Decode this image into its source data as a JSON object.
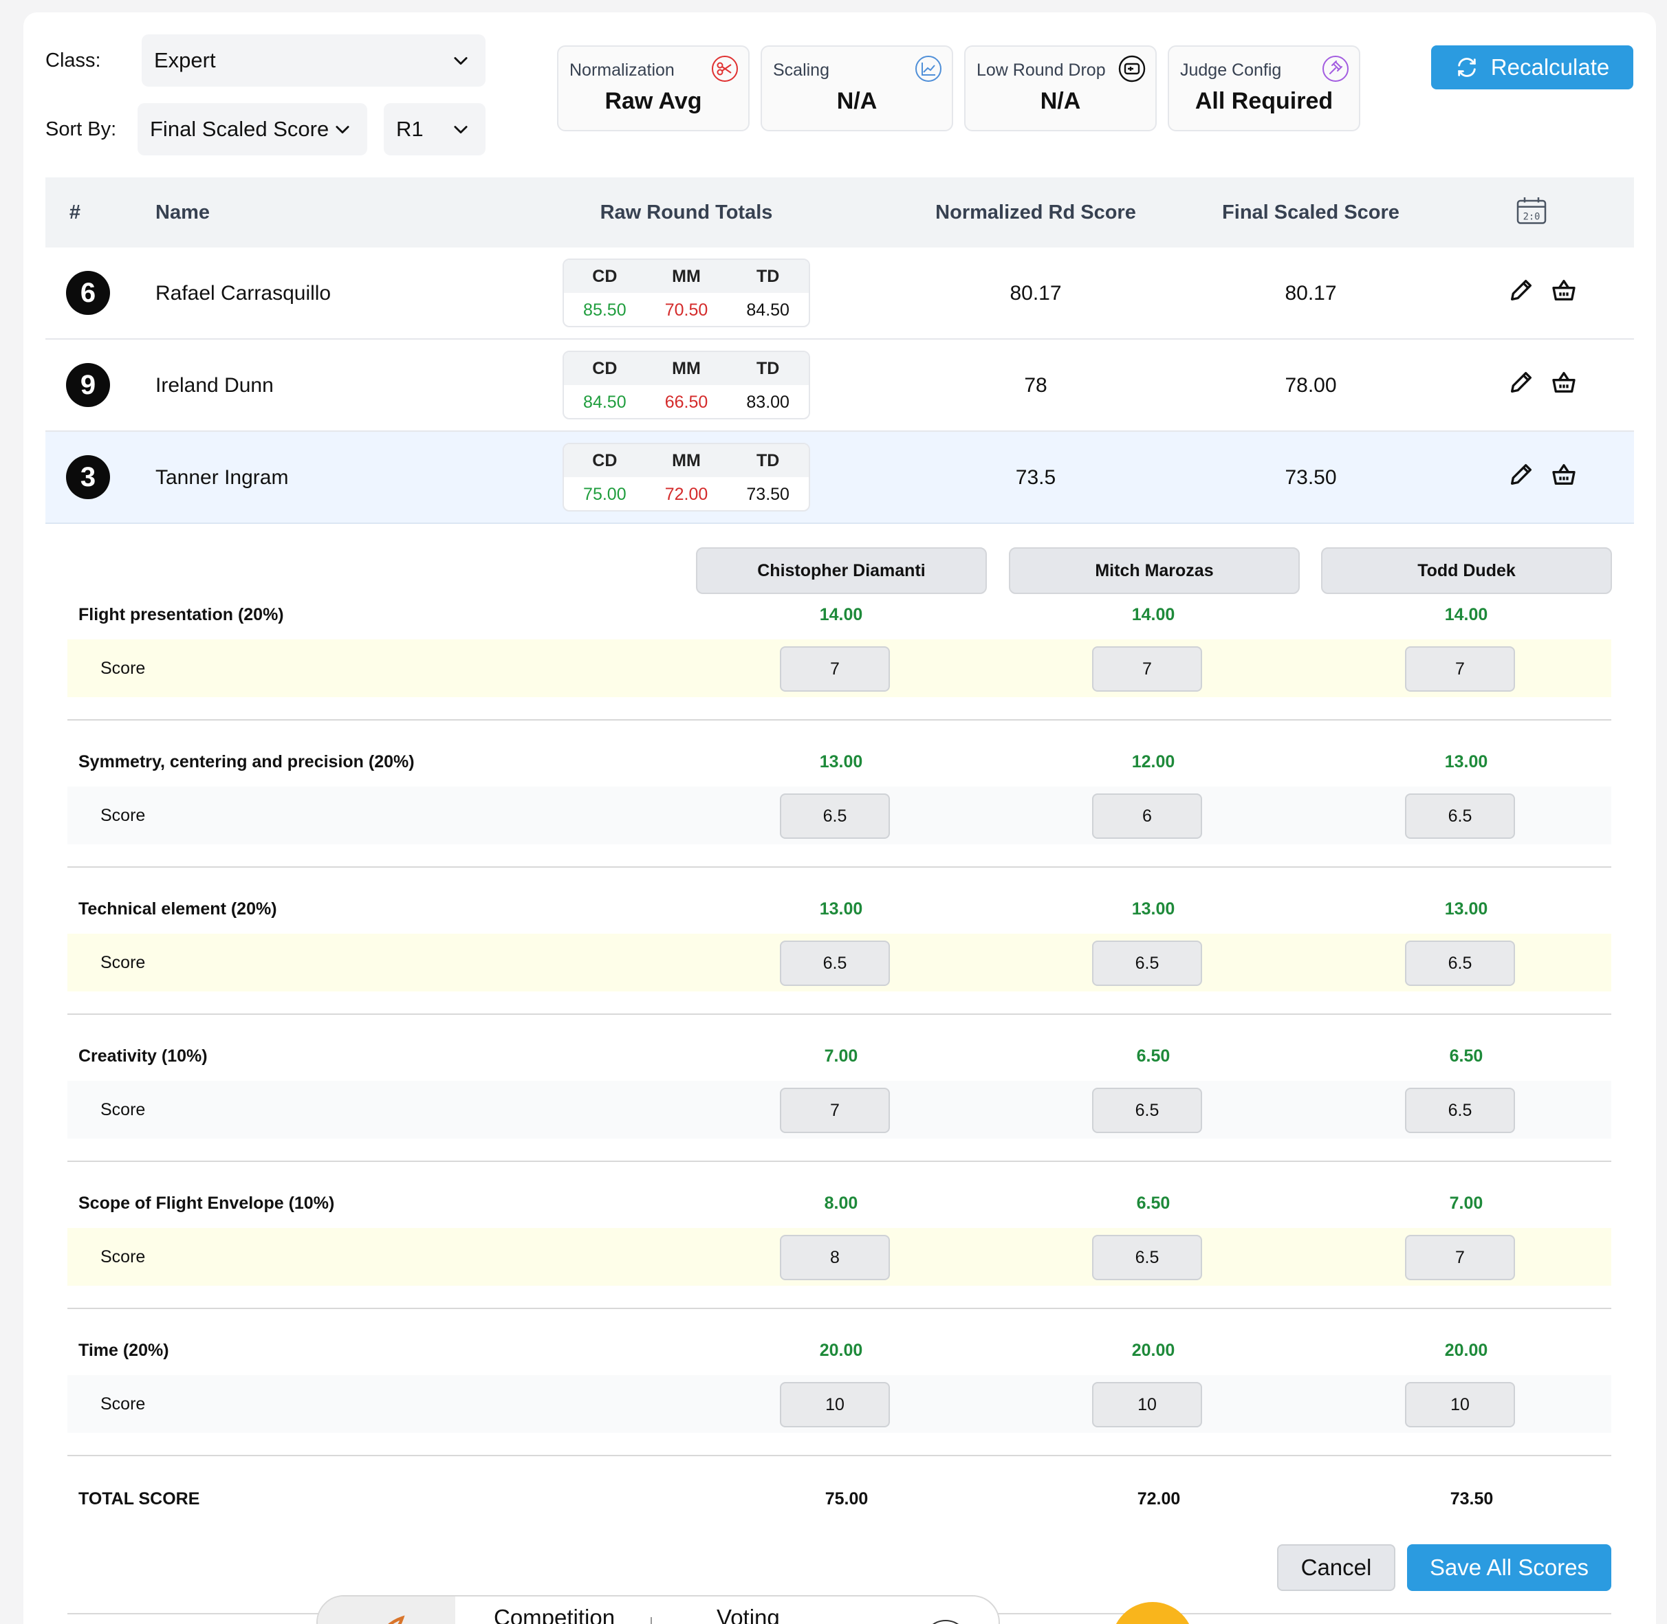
{
  "filters": {
    "class_label": "Class:",
    "class_value": "Expert",
    "sort_label": "Sort By:",
    "sort_value": "Final Scaled Score",
    "round_value": "R1"
  },
  "stats": [
    {
      "title": "Normalization",
      "value": "Raw Avg",
      "icon": "scissors-icon",
      "color": "#e03131"
    },
    {
      "title": "Scaling",
      "value": "N/A",
      "icon": "chart-line-icon",
      "color": "#4f8fd8"
    },
    {
      "title": "Low Round Drop",
      "value": "N/A",
      "icon": "drop-icon",
      "color": "#111111"
    },
    {
      "title": "Judge Config",
      "value": "All Required",
      "icon": "gavel-icon",
      "color": "#a35de0"
    }
  ],
  "recalculate_label": "Recalculate",
  "table": {
    "headers": {
      "num": "#",
      "name": "Name",
      "raw": "Raw Round Totals",
      "normalized": "Normalized Rd Score",
      "final": "Final Scaled Score"
    },
    "judge_abbr": [
      "CD",
      "MM",
      "TD"
    ],
    "rows": [
      {
        "num": "6",
        "name": "Rafael Carrasquillo",
        "raw": [
          "85.50",
          "70.50",
          "84.50"
        ],
        "normalized": "80.17",
        "final": "80.17"
      },
      {
        "num": "9",
        "name": "Ireland Dunn",
        "raw": [
          "84.50",
          "66.50",
          "83.00"
        ],
        "normalized": "78",
        "final": "78.00"
      },
      {
        "num": "3",
        "name": "Tanner Ingram",
        "raw": [
          "75.00",
          "72.00",
          "73.50"
        ],
        "normalized": "73.5",
        "final": "73.50"
      }
    ]
  },
  "judges": [
    "Chistopher Diamanti",
    "Mitch Marozas",
    "Todd Dudek"
  ],
  "score_label": "Score",
  "criteria": [
    {
      "name": "Flight presentation (20%)",
      "weighted": [
        "14.00",
        "14.00",
        "14.00"
      ],
      "scores": [
        "7",
        "7",
        "7"
      ]
    },
    {
      "name": "Symmetry, centering and precision (20%)",
      "weighted": [
        "13.00",
        "12.00",
        "13.00"
      ],
      "scores": [
        "6.5",
        "6",
        "6.5"
      ]
    },
    {
      "name": "Technical element (20%)",
      "weighted": [
        "13.00",
        "13.00",
        "13.00"
      ],
      "scores": [
        "6.5",
        "6.5",
        "6.5"
      ]
    },
    {
      "name": "Creativity (10%)",
      "weighted": [
        "7.00",
        "6.50",
        "6.50"
      ],
      "scores": [
        "7",
        "6.5",
        "6.5"
      ]
    },
    {
      "name": "Scope of Flight Envelope (10%)",
      "weighted": [
        "8.00",
        "6.50",
        "7.00"
      ],
      "scores": [
        "8",
        "6.5",
        "7"
      ]
    },
    {
      "name": "Time (20%)",
      "weighted": [
        "20.00",
        "20.00",
        "20.00"
      ],
      "scores": [
        "10",
        "10",
        "10"
      ]
    }
  ],
  "total": {
    "label": "TOTAL SCORE",
    "values": [
      "75.00",
      "72.00",
      "73.50"
    ]
  },
  "buttons": {
    "cancel": "Cancel",
    "save": "Save All Scores"
  },
  "bottom_nav": {
    "tab1": "Competition",
    "tab2": "Voting"
  }
}
